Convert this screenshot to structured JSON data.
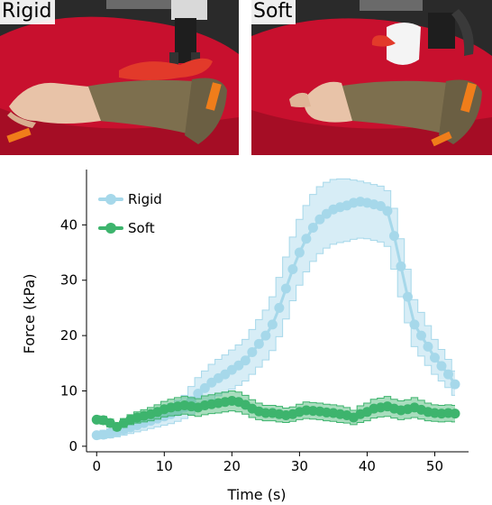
{
  "photos": [
    {
      "label": "Rigid",
      "condition": "rigid gripper"
    },
    {
      "label": "Soft",
      "condition": "soft gripper"
    }
  ],
  "colors": {
    "rigid": "#a6d8ea",
    "soft": "#3db46d",
    "table": "#c8102e",
    "sleeve": "#7d6f4e",
    "skin": "#e8c3a8"
  },
  "chart_data": {
    "type": "line",
    "xlabel": "Time (s)",
    "ylabel": "Force (kPa)",
    "xlim": [
      -1.5,
      55
    ],
    "ylim": [
      -1,
      50
    ],
    "xticks": [
      0,
      10,
      20,
      30,
      40,
      50
    ],
    "yticks": [
      0,
      10,
      20,
      30,
      40
    ],
    "legend_position": "top-left",
    "grid": false,
    "series": [
      {
        "name": "Rigid",
        "color": "#a6d8ea",
        "x": [
          0,
          1,
          2,
          3,
          4,
          5,
          6,
          7,
          8,
          9,
          10,
          11,
          12,
          13,
          14,
          15,
          16,
          17,
          18,
          19,
          20,
          21,
          22,
          23,
          24,
          25,
          26,
          27,
          28,
          29,
          30,
          31,
          32,
          33,
          34,
          35,
          36,
          37,
          38,
          39,
          40,
          41,
          42,
          43,
          44,
          45,
          46,
          47,
          48,
          49,
          50,
          51,
          52,
          53
        ],
        "y": [
          2.0,
          2.1,
          2.3,
          2.6,
          3.0,
          3.4,
          3.8,
          4.2,
          4.6,
          5.0,
          5.4,
          5.8,
          6.3,
          7.0,
          8.2,
          9.5,
          10.5,
          11.5,
          12.3,
          13.0,
          13.8,
          14.6,
          15.5,
          17.0,
          18.5,
          20.0,
          22.0,
          25.0,
          28.5,
          32.0,
          35.0,
          37.5,
          39.5,
          41.0,
          42.0,
          42.8,
          43.2,
          43.5,
          44.0,
          44.2,
          44.0,
          43.7,
          43.4,
          42.5,
          38.0,
          32.5,
          27.0,
          22.0,
          20.0,
          18.0,
          16.0,
          14.5,
          13.0,
          11.2
        ],
        "lower": [
          1.3,
          1.4,
          1.5,
          1.7,
          2.0,
          2.3,
          2.6,
          2.9,
          3.2,
          3.5,
          3.8,
          4.1,
          4.5,
          5.0,
          5.8,
          6.8,
          7.6,
          8.4,
          9.1,
          9.7,
          10.3,
          11.0,
          11.8,
          13.0,
          14.3,
          15.6,
          17.3,
          19.8,
          23.0,
          26.3,
          29.1,
          31.5,
          33.4,
          34.8,
          35.8,
          36.5,
          36.8,
          37.0,
          37.4,
          37.6,
          37.5,
          37.2,
          36.9,
          36.1,
          32.0,
          27.0,
          22.3,
          18.0,
          16.3,
          14.6,
          13.0,
          11.8,
          10.6,
          9.2
        ],
        "upper": [
          2.7,
          2.9,
          3.2,
          3.6,
          4.1,
          4.6,
          5.2,
          5.7,
          6.2,
          6.7,
          7.2,
          7.7,
          8.3,
          9.2,
          10.8,
          12.4,
          13.6,
          14.8,
          15.7,
          16.5,
          17.4,
          18.3,
          19.3,
          21.1,
          22.9,
          24.6,
          27.0,
          30.5,
          34.2,
          37.8,
          41.0,
          43.5,
          45.5,
          46.9,
          47.7,
          48.2,
          48.3,
          48.3,
          48.1,
          47.9,
          47.6,
          47.3,
          47.0,
          46.2,
          43.0,
          37.5,
          32.0,
          26.5,
          24.2,
          21.8,
          19.3,
          17.5,
          15.7,
          13.6
        ]
      },
      {
        "name": "Soft",
        "color": "#3db46d",
        "x": [
          0,
          1,
          2,
          3,
          4,
          5,
          6,
          7,
          8,
          9,
          10,
          11,
          12,
          13,
          14,
          15,
          16,
          17,
          18,
          19,
          20,
          21,
          22,
          23,
          24,
          25,
          26,
          27,
          28,
          29,
          30,
          31,
          32,
          33,
          34,
          35,
          36,
          37,
          38,
          39,
          40,
          41,
          42,
          43,
          44,
          45,
          46,
          47,
          48,
          49,
          50,
          51,
          52,
          53
        ],
        "y": [
          4.8,
          4.7,
          4.2,
          3.5,
          4.2,
          4.8,
          5.2,
          5.5,
          5.8,
          6.2,
          6.7,
          7.0,
          7.2,
          7.4,
          7.2,
          7.0,
          7.4,
          7.6,
          7.8,
          8.0,
          8.2,
          8.0,
          7.5,
          6.8,
          6.3,
          6.0,
          6.0,
          5.8,
          5.6,
          5.8,
          6.2,
          6.5,
          6.4,
          6.3,
          6.1,
          6.0,
          5.8,
          5.6,
          5.2,
          5.8,
          6.2,
          6.8,
          7.0,
          7.2,
          6.8,
          6.5,
          6.7,
          7.0,
          6.6,
          6.2,
          6.0,
          5.9,
          6.0,
          5.9
        ],
        "lower": [
          4.1,
          4.0,
          3.5,
          2.9,
          3.4,
          3.9,
          4.2,
          4.4,
          4.6,
          4.9,
          5.3,
          5.5,
          5.6,
          5.8,
          5.6,
          5.4,
          5.7,
          5.9,
          6.0,
          6.2,
          6.4,
          6.2,
          5.8,
          5.2,
          4.8,
          4.6,
          4.6,
          4.4,
          4.3,
          4.5,
          4.8,
          5.0,
          4.9,
          4.8,
          4.6,
          4.5,
          4.3,
          4.2,
          3.9,
          4.3,
          4.6,
          5.1,
          5.3,
          5.4,
          5.1,
          4.8,
          5.0,
          5.2,
          4.9,
          4.6,
          4.5,
          4.4,
          4.5,
          4.4
        ],
        "upper": [
          5.5,
          5.4,
          4.9,
          4.1,
          5.0,
          5.7,
          6.2,
          6.6,
          7.0,
          7.5,
          8.1,
          8.5,
          8.8,
          9.0,
          8.8,
          8.6,
          9.1,
          9.3,
          9.6,
          9.8,
          10.0,
          9.8,
          9.2,
          8.4,
          7.8,
          7.4,
          7.4,
          7.2,
          6.9,
          7.1,
          7.6,
          8.0,
          7.9,
          7.8,
          7.6,
          7.5,
          7.3,
          7.0,
          6.5,
          7.3,
          7.8,
          8.5,
          8.7,
          9.0,
          8.5,
          8.2,
          8.4,
          8.8,
          8.3,
          7.8,
          7.5,
          7.4,
          7.5,
          7.4
        ]
      }
    ]
  }
}
